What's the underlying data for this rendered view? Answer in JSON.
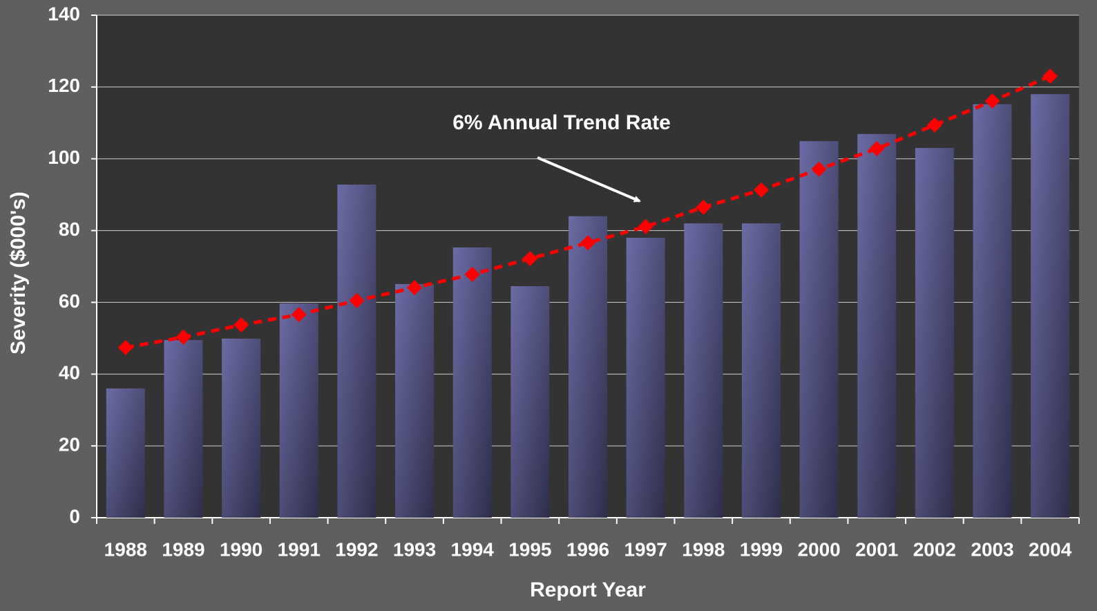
{
  "chart_data": {
    "type": "bar",
    "xlabel": "Report Year",
    "ylabel": "Severity ($000's)",
    "annotation": "6% Annual Trend Rate",
    "categories": [
      "1988",
      "1989",
      "1990",
      "1991",
      "1992",
      "1993",
      "1994",
      "1995",
      "1996",
      "1997",
      "1998",
      "1999",
      "2000",
      "2001",
      "2002",
      "2003",
      "2004"
    ],
    "series": [
      {
        "type": "bar",
        "color": "#6c6ca6",
        "values": [
          36.0,
          49.5,
          49.9,
          59.7,
          92.8,
          65.1,
          75.3,
          64.5,
          84.0,
          78.0,
          82.0,
          82.0,
          104.9,
          106.9,
          103.0,
          115.2,
          118.0
        ]
      },
      {
        "type": "line",
        "color": "#ff0000",
        "values": [
          47.4,
          50.3,
          53.7,
          56.6,
          60.5,
          64.1,
          67.8,
          72.2,
          76.6,
          81.1,
          86.5,
          91.3,
          97.1,
          102.8,
          109.4,
          116.1,
          123.0
        ]
      }
    ],
    "ylim": [
      0,
      140
    ],
    "yticks": [
      0,
      20,
      40,
      60,
      80,
      100,
      120,
      140
    ],
    "grid": true
  }
}
